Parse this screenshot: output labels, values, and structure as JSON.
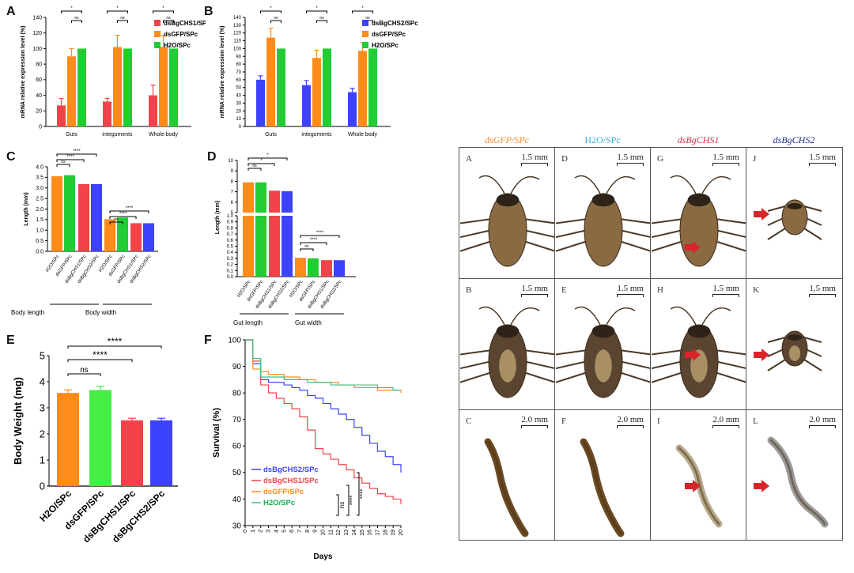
{
  "colors": {
    "h2o_green": "#22cc33",
    "gfp_orange": "#ff8c1a",
    "chs1_red": "#f2434a",
    "chs2_blue": "#3d42ff",
    "survival_green": "#3cbf8c",
    "header_gfp": "#f28c28",
    "header_h2o": "#39b4d9",
    "header_chs1": "#e0294b",
    "header_chs2": "#1b2a8a",
    "arrow_red": "#d6262b"
  },
  "panel_letters": {
    "A": "A",
    "B": "B",
    "C": "C",
    "D": "D",
    "E": "E",
    "F": "F"
  },
  "chart_data": [
    {
      "id": "A",
      "type": "bar",
      "ylabel": "mRNA relative expression level (%)",
      "ylim": [
        0,
        140
      ],
      "yticks": [
        0,
        20,
        40,
        60,
        80,
        100,
        120,
        140
      ],
      "categories": [
        "Guts",
        "integuments",
        "Whole body"
      ],
      "legend": [
        "dsBgCHS1/SPc",
        "dsGFP/SPc",
        "H2O/SPc"
      ],
      "series": [
        {
          "name": "dsBgCHS1/SPc",
          "values": [
            27,
            32,
            40
          ],
          "errors": [
            9,
            4,
            13
          ]
        },
        {
          "name": "dsGFP/SPc",
          "values": [
            90,
            102,
            102
          ],
          "errors": [
            10,
            15,
            15
          ]
        },
        {
          "name": "H2O/SPc",
          "values": [
            100,
            100,
            100
          ],
          "errors": [
            0,
            0,
            0
          ]
        }
      ],
      "significance": [
        "*",
        "ns",
        "*",
        "ns",
        "*",
        "ns"
      ]
    },
    {
      "id": "B",
      "type": "bar",
      "ylabel": "mRNA relative expression level (%)",
      "ylim": [
        0,
        140
      ],
      "yticks": [
        0,
        10,
        20,
        30,
        40,
        50,
        60,
        70,
        80,
        90,
        100,
        110,
        120,
        130,
        140
      ],
      "categories": [
        "Guts",
        "integuments",
        "Whole body"
      ],
      "legend": [
        "dsBgCHS2/SPc",
        "dsGFP/SPc",
        "H2O/SPc"
      ],
      "series": [
        {
          "name": "dsBgCHS2/SPc",
          "values": [
            60,
            53,
            44
          ],
          "errors": [
            5,
            6,
            5
          ]
        },
        {
          "name": "dsGFP/SPc",
          "values": [
            114,
            88,
            97
          ],
          "errors": [
            12,
            10,
            10
          ]
        },
        {
          "name": "H2O/SPc",
          "values": [
            100,
            100,
            100
          ],
          "errors": [
            0,
            0,
            0
          ]
        }
      ],
      "significance": [
        "*",
        "ns",
        "*",
        "ns",
        "*",
        "ns"
      ]
    },
    {
      "id": "C",
      "type": "bar",
      "ylabel": "Length (mm)",
      "ylim": [
        0,
        4.0
      ],
      "yticks": [
        0.0,
        0.5,
        1.0,
        1.5,
        2.0,
        2.5,
        3.0,
        3.5,
        4.0
      ],
      "categories": [
        "H2O/SPc",
        "dsGFP/SPc",
        "dsBgCHS1/SPc",
        "dsBgCHS2/SPc",
        "H2O/SPc",
        "dsGFP/SPc",
        "dsBgCHS1/SPc",
        "dsBgCHS2/SPc"
      ],
      "values": [
        3.55,
        3.6,
        3.18,
        3.18,
        1.52,
        1.6,
        1.33,
        1.33
      ],
      "groups": [
        "Body length",
        "Body width"
      ],
      "significance": [
        "ns",
        "****",
        "****",
        "ns",
        "****",
        "****"
      ]
    },
    {
      "id": "D",
      "type": "bar",
      "ylabel": "Length (mm)",
      "yticks": [
        "0.0",
        "0.1",
        "0.2",
        "0.3",
        "0.4",
        "0.5",
        "0.6",
        "0.7",
        "0.8",
        "0.9",
        "1.0",
        "5",
        "6",
        "7",
        "8",
        "9",
        "10"
      ],
      "categories": [
        "H2O/SPc",
        "dsGFP/SPc",
        "dsBgCHS1/SPc",
        "dsBgCHS2/SPc",
        "H2O/SPc",
        "dsGFP/SPc",
        "dsBgCHS1/SPc",
        "dsBgCHS2/SPc"
      ],
      "values": [
        7.9,
        7.9,
        7.1,
        7.05,
        0.31,
        0.3,
        0.27,
        0.27
      ],
      "groups": [
        "Gut length",
        "Gut width"
      ],
      "significance": [
        "ns",
        "*",
        "*",
        "ns",
        "****",
        "****"
      ]
    },
    {
      "id": "E",
      "type": "bar",
      "ylabel": "Body Weight (mg)",
      "ylim": [
        0,
        5
      ],
      "yticks": [
        0,
        1,
        2,
        3,
        4,
        5
      ],
      "categories": [
        "H2O/SPc",
        "dsGFP/SPc",
        "dsBgCHS1/SPc",
        "dsBgCHS2/SPc"
      ],
      "values": [
        3.57,
        3.68,
        2.52,
        2.52
      ],
      "errors": [
        0.12,
        0.15,
        0.08,
        0.08
      ],
      "significance": [
        "ns",
        "****",
        "****"
      ]
    },
    {
      "id": "F",
      "type": "line",
      "xlabel": "Days",
      "ylabel": "Survival (%)",
      "ylim": [
        30,
        100
      ],
      "yticks": [
        30,
        40,
        50,
        60,
        70,
        80,
        90,
        100
      ],
      "x": [
        0,
        1,
        2,
        3,
        4,
        5,
        6,
        7,
        8,
        9,
        10,
        11,
        12,
        13,
        14,
        15,
        16,
        17,
        18,
        19,
        20
      ],
      "series": [
        {
          "name": "dsBgCHS2/SPc",
          "values": [
            100,
            91,
            85,
            84,
            84,
            83,
            82,
            81,
            79,
            78,
            76,
            74,
            72,
            70,
            67,
            64,
            61,
            58,
            56,
            53,
            50
          ]
        },
        {
          "name": "dsBgCHS1/SPc",
          "values": [
            100,
            92,
            83,
            80,
            78,
            76,
            74,
            71,
            66,
            59,
            57,
            55,
            53,
            51,
            48,
            46,
            44,
            42,
            41,
            40,
            38
          ]
        },
        {
          "name": "dsGFP/SPc",
          "values": [
            100,
            89,
            88,
            87,
            87,
            86,
            86,
            85,
            85,
            84,
            84,
            84,
            83,
            83,
            82,
            82,
            82,
            81,
            81,
            81,
            80
          ]
        },
        {
          "name": "H2O/SPc",
          "values": [
            100,
            93,
            86,
            86,
            86,
            85,
            85,
            85,
            84,
            84,
            84,
            83,
            83,
            83,
            83,
            83,
            83,
            82,
            82,
            81,
            81
          ]
        }
      ],
      "significance": [
        "ns",
        "****",
        "****"
      ]
    }
  ],
  "photos": {
    "headers": [
      "dsGFP/SPc",
      "H2O/SPc",
      "dsBgCHS1",
      "dsBgCHS2"
    ],
    "cells": [
      {
        "letter": "A",
        "scale": "1.5 mm"
      },
      {
        "letter": "D",
        "scale": "1.5 mm"
      },
      {
        "letter": "G",
        "scale": "1.5 mm"
      },
      {
        "letter": "J",
        "scale": "1.5 mm"
      },
      {
        "letter": "B",
        "scale": "1.5 mm"
      },
      {
        "letter": "E",
        "scale": "1.5 mm"
      },
      {
        "letter": "H",
        "scale": "1.5 mm"
      },
      {
        "letter": "K",
        "scale": "1.5 mm"
      },
      {
        "letter": "C",
        "scale": "2.0 mm"
      },
      {
        "letter": "F",
        "scale": "2.0 mm"
      },
      {
        "letter": "I",
        "scale": "2.0 mm"
      },
      {
        "letter": "L",
        "scale": "2.0 mm"
      }
    ]
  }
}
